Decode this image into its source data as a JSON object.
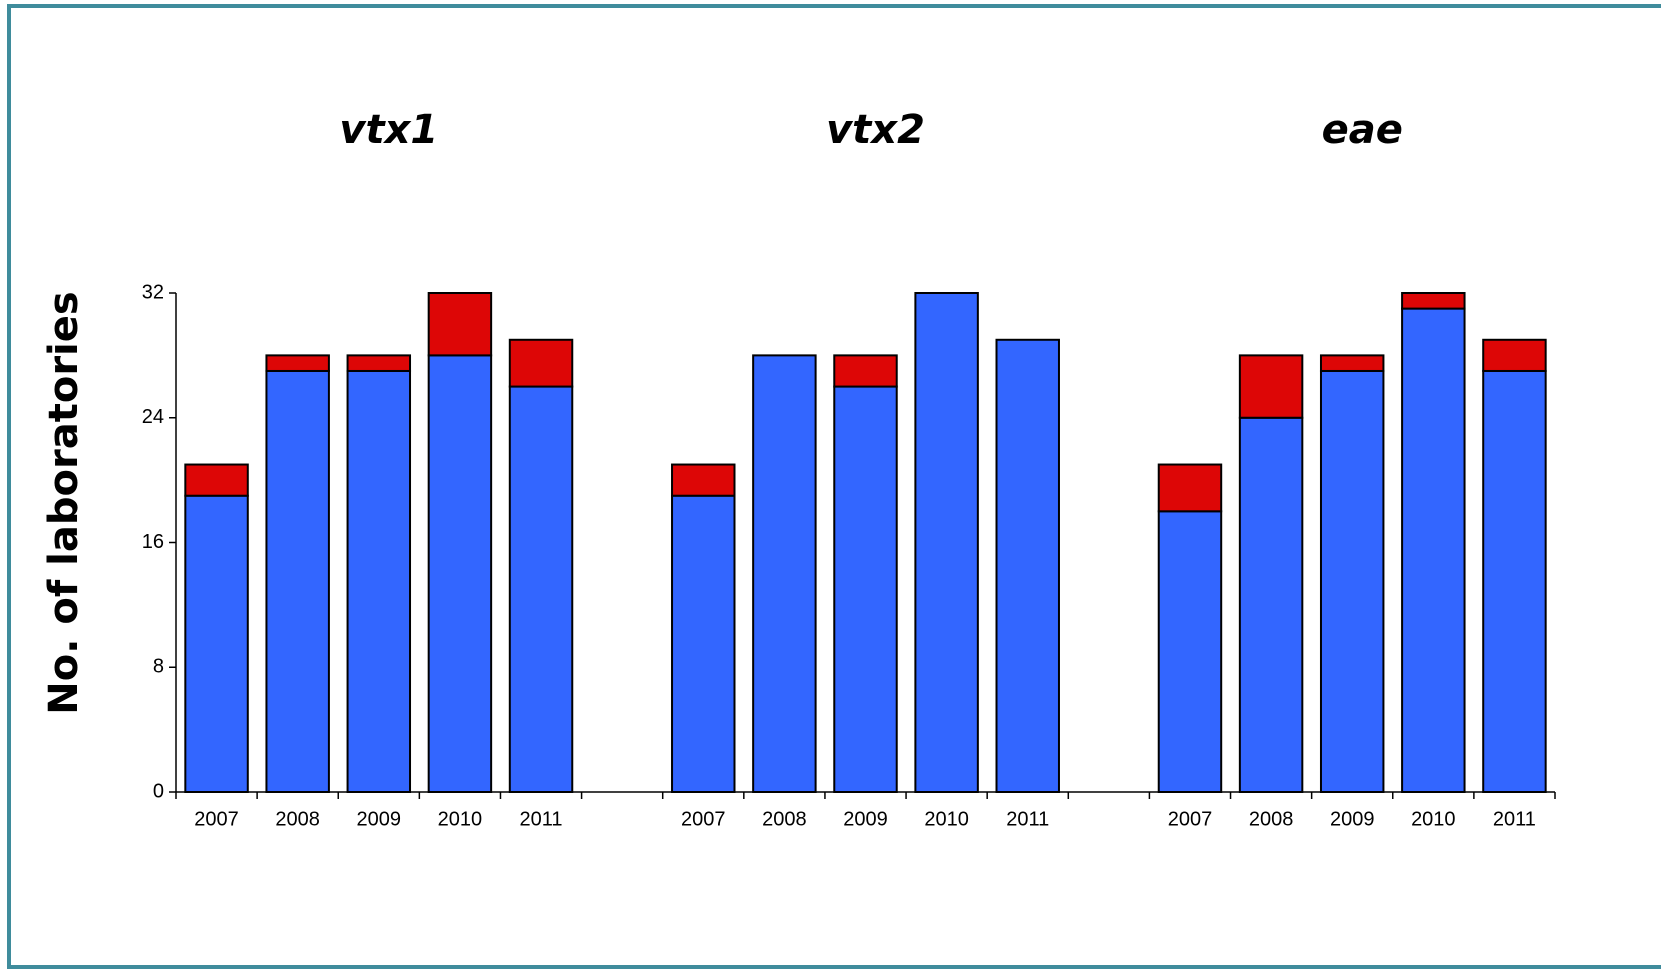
{
  "chart_data": {
    "type": "bar",
    "stacked": true,
    "ylabel": "No. of laboratories",
    "ylim": [
      0,
      32
    ],
    "yticks": [
      0,
      8,
      16,
      24,
      32
    ],
    "panels": [
      {
        "title": "vtx1",
        "categories": [
          "2007",
          "2008",
          "2009",
          "2010",
          "2011"
        ],
        "series": [
          {
            "color": "#3366ff",
            "values": [
              19,
              27,
              27,
              28,
              26
            ]
          },
          {
            "color": "#dd0606",
            "values": [
              2,
              1,
              1,
              4,
              3
            ]
          }
        ]
      },
      {
        "title": "vtx2",
        "categories": [
          "2007",
          "2008",
          "2009",
          "2010",
          "2011"
        ],
        "series": [
          {
            "color": "#3366ff",
            "values": [
              19,
              28,
              26,
              32,
              29
            ]
          },
          {
            "color": "#dd0606",
            "values": [
              2,
              0,
              2,
              0,
              0
            ]
          }
        ]
      },
      {
        "title": "eae",
        "categories": [
          "2007",
          "2008",
          "2009",
          "2010",
          "2011"
        ],
        "series": [
          {
            "color": "#3366ff",
            "values": [
              18,
              24,
              27,
              31,
              27
            ]
          },
          {
            "color": "#dd0606",
            "values": [
              3,
              4,
              1,
              1,
              2
            ]
          }
        ]
      }
    ]
  }
}
